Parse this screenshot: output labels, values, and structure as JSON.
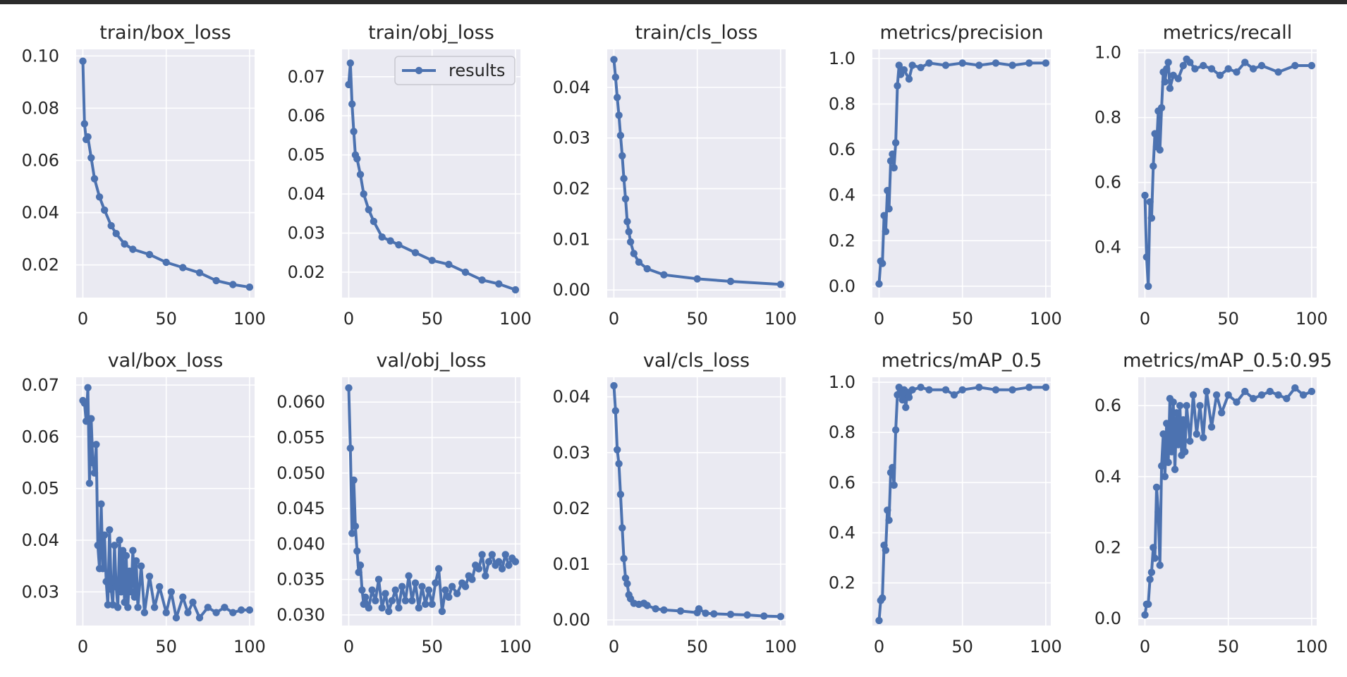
{
  "figure": {
    "legend_label": "results"
  },
  "colors": {
    "line": "#4c72b0",
    "panel_bg": "#eaeaf2",
    "grid": "#ffffff",
    "text": "#262626"
  },
  "chart_data": [
    {
      "type": "line",
      "title": "train/box_loss",
      "xlabel": "",
      "ylabel": "",
      "xlim": [
        -4,
        103
      ],
      "ylim": [
        0.0075,
        0.1025
      ],
      "xticks": [
        0,
        50,
        100
      ],
      "yticks": [
        0.02,
        0.04,
        0.06,
        0.08,
        0.1
      ],
      "ytick_labels": [
        "0.02",
        "0.04",
        "0.06",
        "0.08",
        "0.10"
      ],
      "series": [
        {
          "name": "results",
          "x": [
            0,
            1,
            2,
            3,
            5,
            7,
            10,
            13,
            17,
            20,
            25,
            30,
            40,
            50,
            60,
            70,
            80,
            90,
            100
          ],
          "y": [
            0.098,
            0.074,
            0.068,
            0.069,
            0.061,
            0.053,
            0.046,
            0.041,
            0.035,
            0.032,
            0.028,
            0.026,
            0.024,
            0.021,
            0.019,
            0.017,
            0.014,
            0.0125,
            0.0115
          ]
        }
      ]
    },
    {
      "type": "line",
      "title": "train/obj_loss",
      "xlabel": "",
      "ylabel": "",
      "xlim": [
        -4,
        103
      ],
      "ylim": [
        0.0135,
        0.077
      ],
      "xticks": [
        0,
        50,
        100
      ],
      "yticks": [
        0.02,
        0.03,
        0.04,
        0.05,
        0.06,
        0.07
      ],
      "ytick_labels": [
        "0.02",
        "0.03",
        "0.04",
        "0.05",
        "0.06",
        "0.07"
      ],
      "series": [
        {
          "name": "results",
          "x": [
            0,
            1,
            2,
            3,
            4,
            5,
            7,
            9,
            12,
            15,
            20,
            25,
            30,
            40,
            50,
            60,
            70,
            80,
            90,
            100
          ],
          "y": [
            0.068,
            0.0735,
            0.063,
            0.056,
            0.05,
            0.049,
            0.045,
            0.04,
            0.036,
            0.033,
            0.029,
            0.028,
            0.027,
            0.025,
            0.023,
            0.022,
            0.02,
            0.018,
            0.017,
            0.0155
          ]
        }
      ]
    },
    {
      "type": "line",
      "title": "train/cls_loss",
      "xlabel": "",
      "ylabel": "",
      "xlim": [
        -4,
        103
      ],
      "ylim": [
        -0.0015,
        0.0475
      ],
      "xticks": [
        0,
        50,
        100
      ],
      "yticks": [
        0.0,
        0.01,
        0.02,
        0.03,
        0.04
      ],
      "ytick_labels": [
        "0.00",
        "0.01",
        "0.02",
        "0.03",
        "0.04"
      ],
      "series": [
        {
          "name": "results",
          "x": [
            0,
            1,
            2,
            3,
            4,
            5,
            6,
            7,
            8,
            9,
            10,
            12,
            15,
            20,
            30,
            50,
            70,
            100
          ],
          "y": [
            0.0455,
            0.042,
            0.038,
            0.0345,
            0.0305,
            0.0265,
            0.022,
            0.018,
            0.0135,
            0.0115,
            0.0095,
            0.0072,
            0.0055,
            0.0042,
            0.003,
            0.0022,
            0.0017,
            0.0011
          ]
        }
      ]
    },
    {
      "type": "line",
      "title": "metrics/precision",
      "xlabel": "",
      "ylabel": "",
      "xlim": [
        -4,
        103
      ],
      "ylim": [
        -0.05,
        1.04
      ],
      "xticks": [
        0,
        50,
        100
      ],
      "yticks": [
        0.0,
        0.2,
        0.4,
        0.6,
        0.8,
        1.0
      ],
      "ytick_labels": [
        "0.0",
        "0.2",
        "0.4",
        "0.6",
        "0.8",
        "1.0"
      ],
      "series": [
        {
          "name": "results",
          "x": [
            0,
            1,
            2,
            3,
            4,
            5,
            6,
            7,
            8,
            9,
            10,
            11,
            12,
            13,
            15,
            18,
            20,
            25,
            30,
            40,
            50,
            60,
            70,
            80,
            90,
            100
          ],
          "y": [
            0.01,
            0.11,
            0.1,
            0.31,
            0.24,
            0.42,
            0.34,
            0.55,
            0.58,
            0.52,
            0.63,
            0.88,
            0.97,
            0.93,
            0.95,
            0.91,
            0.97,
            0.96,
            0.98,
            0.97,
            0.98,
            0.97,
            0.98,
            0.97,
            0.98,
            0.98
          ]
        }
      ]
    },
    {
      "type": "line",
      "title": "metrics/recall",
      "xlabel": "",
      "ylabel": "",
      "xlim": [
        -4,
        103
      ],
      "ylim": [
        0.245,
        1.01
      ],
      "xticks": [
        0,
        50,
        100
      ],
      "yticks": [
        0.4,
        0.6,
        0.8,
        1.0
      ],
      "ytick_labels": [
        "0.4",
        "0.6",
        "0.8",
        "1.0"
      ],
      "series": [
        {
          "name": "results",
          "x": [
            0,
            1,
            2,
            3,
            4,
            5,
            6,
            7,
            8,
            9,
            10,
            11,
            12,
            13,
            14,
            15,
            17,
            20,
            23,
            25,
            27,
            30,
            35,
            40,
            45,
            50,
            55,
            60,
            65,
            70,
            80,
            90,
            100
          ],
          "y": [
            0.56,
            0.37,
            0.28,
            0.54,
            0.49,
            0.65,
            0.75,
            0.71,
            0.82,
            0.7,
            0.83,
            0.94,
            0.91,
            0.95,
            0.97,
            0.89,
            0.93,
            0.92,
            0.96,
            0.98,
            0.97,
            0.95,
            0.96,
            0.95,
            0.93,
            0.95,
            0.94,
            0.97,
            0.95,
            0.96,
            0.94,
            0.96,
            0.96
          ]
        }
      ]
    },
    {
      "type": "line",
      "title": "val/box_loss",
      "xlabel": "",
      "ylabel": "",
      "xlim": [
        -4,
        103
      ],
      "ylim": [
        0.0235,
        0.0715
      ],
      "xticks": [
        0,
        50,
        100
      ],
      "yticks": [
        0.03,
        0.04,
        0.05,
        0.06,
        0.07
      ],
      "ytick_labels": [
        "0.03",
        "0.04",
        "0.05",
        "0.06",
        "0.07"
      ],
      "series": [
        {
          "name": "results",
          "x": [
            0,
            1,
            2,
            3,
            4,
            5,
            6,
            7,
            8,
            9,
            10,
            11,
            12,
            13,
            14,
            15,
            16,
            17,
            18,
            19,
            20,
            21,
            22,
            23,
            24,
            25,
            26,
            27,
            28,
            29,
            30,
            31,
            32,
            33,
            35,
            37,
            40,
            43,
            46,
            50,
            53,
            56,
            60,
            63,
            66,
            70,
            75,
            80,
            85,
            90,
            95,
            100
          ],
          "y": [
            0.067,
            0.0665,
            0.063,
            0.0695,
            0.051,
            0.0635,
            0.055,
            0.053,
            0.0585,
            0.039,
            0.0345,
            0.047,
            0.0345,
            0.041,
            0.032,
            0.0275,
            0.042,
            0.0305,
            0.0275,
            0.039,
            0.031,
            0.027,
            0.04,
            0.03,
            0.038,
            0.028,
            0.037,
            0.027,
            0.034,
            0.03,
            0.038,
            0.029,
            0.036,
            0.027,
            0.035,
            0.026,
            0.033,
            0.027,
            0.031,
            0.026,
            0.03,
            0.025,
            0.029,
            0.026,
            0.028,
            0.025,
            0.027,
            0.026,
            0.027,
            0.026,
            0.0265,
            0.0265
          ]
        }
      ]
    },
    {
      "type": "line",
      "title": "val/obj_loss",
      "xlabel": "",
      "ylabel": "",
      "xlim": [
        -4,
        103
      ],
      "ylim": [
        0.0285,
        0.0635
      ],
      "xticks": [
        0,
        50,
        100
      ],
      "yticks": [
        0.03,
        0.035,
        0.04,
        0.045,
        0.05,
        0.055,
        0.06
      ],
      "ytick_labels": [
        "0.030",
        "0.035",
        "0.040",
        "0.045",
        "0.050",
        "0.055",
        "0.060"
      ],
      "series": [
        {
          "name": "results",
          "x": [
            0,
            1,
            2,
            3,
            4,
            5,
            6,
            7,
            8,
            9,
            10,
            12,
            14,
            16,
            18,
            20,
            22,
            24,
            26,
            28,
            30,
            32,
            34,
            36,
            38,
            40,
            42,
            44,
            46,
            48,
            50,
            52,
            54,
            56,
            58,
            60,
            62,
            65,
            68,
            70,
            72,
            74,
            76,
            78,
            80,
            82,
            84,
            86,
            88,
            90,
            92,
            94,
            96,
            98,
            100
          ],
          "y": [
            0.062,
            0.0535,
            0.0415,
            0.049,
            0.0425,
            0.039,
            0.036,
            0.037,
            0.0335,
            0.0315,
            0.0325,
            0.031,
            0.0335,
            0.032,
            0.035,
            0.031,
            0.033,
            0.0305,
            0.032,
            0.0335,
            0.031,
            0.034,
            0.032,
            0.0355,
            0.032,
            0.0345,
            0.031,
            0.034,
            0.0315,
            0.0335,
            0.0315,
            0.0345,
            0.0365,
            0.0305,
            0.0335,
            0.0325,
            0.034,
            0.033,
            0.0345,
            0.034,
            0.0355,
            0.035,
            0.037,
            0.0365,
            0.0385,
            0.0355,
            0.0375,
            0.0385,
            0.037,
            0.0375,
            0.0365,
            0.0385,
            0.037,
            0.038,
            0.0375
          ]
        }
      ]
    },
    {
      "type": "line",
      "title": "val/cls_loss",
      "xlabel": "",
      "ylabel": "",
      "xlim": [
        -4,
        103
      ],
      "ylim": [
        -0.001,
        0.0435
      ],
      "xticks": [
        0,
        50,
        100
      ],
      "yticks": [
        0.0,
        0.01,
        0.02,
        0.03,
        0.04
      ],
      "ytick_labels": [
        "0.00",
        "0.01",
        "0.02",
        "0.03",
        "0.04"
      ],
      "series": [
        {
          "name": "results",
          "x": [
            0,
            1,
            2,
            3,
            4,
            5,
            6,
            7,
            8,
            9,
            10,
            12,
            15,
            18,
            20,
            25,
            30,
            40,
            50,
            51,
            55,
            60,
            70,
            80,
            90,
            100
          ],
          "y": [
            0.042,
            0.0375,
            0.0305,
            0.028,
            0.0225,
            0.0165,
            0.011,
            0.0075,
            0.0065,
            0.0045,
            0.0038,
            0.003,
            0.0028,
            0.003,
            0.0026,
            0.002,
            0.0018,
            0.0016,
            0.0013,
            0.002,
            0.0012,
            0.0011,
            0.001,
            0.0009,
            0.0007,
            0.0006
          ]
        }
      ]
    },
    {
      "type": "line",
      "title": "metrics/mAP_0.5",
      "xlabel": "",
      "ylabel": "",
      "xlim": [
        -4,
        103
      ],
      "ylim": [
        0.03,
        1.02
      ],
      "xticks": [
        0,
        50,
        100
      ],
      "yticks": [
        0.2,
        0.4,
        0.6,
        0.8,
        1.0
      ],
      "ytick_labels": [
        "0.2",
        "0.4",
        "0.6",
        "0.8",
        "1.0"
      ],
      "series": [
        {
          "name": "results",
          "x": [
            0,
            1,
            2,
            3,
            4,
            5,
            6,
            7,
            8,
            9,
            10,
            11,
            12,
            13,
            14,
            15,
            16,
            17,
            18,
            20,
            25,
            30,
            40,
            45,
            50,
            60,
            70,
            80,
            90,
            100
          ],
          "y": [
            0.05,
            0.13,
            0.14,
            0.35,
            0.33,
            0.49,
            0.45,
            0.64,
            0.66,
            0.59,
            0.81,
            0.95,
            0.98,
            0.96,
            0.93,
            0.97,
            0.9,
            0.96,
            0.94,
            0.97,
            0.98,
            0.97,
            0.97,
            0.95,
            0.97,
            0.98,
            0.97,
            0.97,
            0.98,
            0.98
          ]
        }
      ]
    },
    {
      "type": "line",
      "title": "metrics/mAP_0.5:0.95",
      "xlabel": "",
      "ylabel": "",
      "xlim": [
        -4,
        103
      ],
      "ylim": [
        -0.02,
        0.68
      ],
      "xticks": [
        0,
        50,
        100
      ],
      "yticks": [
        0.0,
        0.2,
        0.4,
        0.6
      ],
      "ytick_labels": [
        "0.0",
        "0.2",
        "0.4",
        "0.6"
      ],
      "series": [
        {
          "name": "results",
          "x": [
            0,
            1,
            2,
            3,
            4,
            5,
            6,
            7,
            8,
            9,
            10,
            11,
            12,
            13,
            14,
            15,
            16,
            17,
            18,
            19,
            20,
            21,
            22,
            23,
            24,
            25,
            27,
            29,
            31,
            33,
            35,
            37,
            40,
            43,
            46,
            50,
            55,
            60,
            65,
            70,
            75,
            80,
            85,
            90,
            95,
            100
          ],
          "y": [
            0.01,
            0.04,
            0.04,
            0.11,
            0.13,
            0.2,
            0.17,
            0.37,
            0.3,
            0.15,
            0.43,
            0.52,
            0.4,
            0.55,
            0.44,
            0.62,
            0.47,
            0.61,
            0.42,
            0.58,
            0.49,
            0.6,
            0.46,
            0.56,
            0.47,
            0.6,
            0.5,
            0.63,
            0.52,
            0.6,
            0.51,
            0.64,
            0.54,
            0.63,
            0.58,
            0.63,
            0.61,
            0.64,
            0.62,
            0.63,
            0.64,
            0.63,
            0.62,
            0.65,
            0.63,
            0.64
          ]
        }
      ]
    }
  ]
}
